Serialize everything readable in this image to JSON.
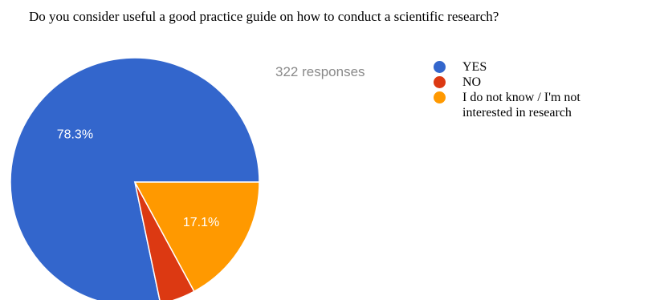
{
  "question": "Do you consider useful a good practice guide on how to conduct a scientific research?",
  "responses_text": "322 responses",
  "chart_data": {
    "type": "pie",
    "title": "Do you consider useful a good practice guide on how to conduct a scientific research?",
    "total_responses": 322,
    "slices": [
      {
        "label": "YES",
        "value": 78.3,
        "value_label": "78.3%",
        "color": "#3366cc"
      },
      {
        "label": "NO",
        "value": 4.6,
        "value_label": "",
        "color": "#dc3912"
      },
      {
        "label": "I do not know / I'm not interested in research",
        "value": 17.1,
        "value_label": "17.1%",
        "color": "#ff9900"
      }
    ],
    "start_angle_deg": 0,
    "direction": "counterclockwise",
    "legend_position": "right"
  }
}
